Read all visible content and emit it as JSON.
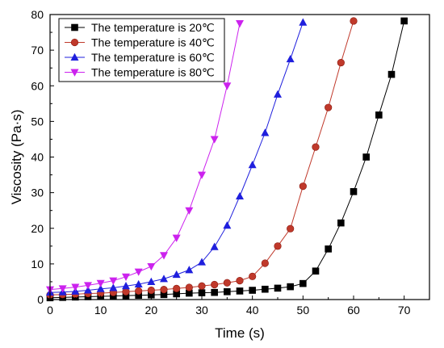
{
  "chart_data": {
    "type": "line",
    "xlabel": "Time (s)",
    "ylabel": "Viscosity (Pa·s)",
    "xlim": [
      0,
      75
    ],
    "ylim": [
      0,
      80
    ],
    "xticks": [
      "0",
      "10",
      "20",
      "30",
      "40",
      "50",
      "60",
      "70"
    ],
    "yticks": [
      "0",
      "10",
      "20",
      "30",
      "40",
      "50",
      "60",
      "70",
      "80"
    ],
    "grid": false,
    "legend_position": "top-left",
    "series": [
      {
        "name": "The temperature is 20℃",
        "color": "#000000",
        "marker": "square",
        "x": [
          0,
          2.5,
          5,
          7.5,
          10,
          12.5,
          15,
          17.5,
          20,
          22.5,
          25,
          27.5,
          30,
          32.5,
          35,
          37.5,
          40,
          42.5,
          45,
          47.5,
          50,
          52.5,
          55,
          57.5,
          60,
          62.5,
          65,
          67.5,
          70
        ],
        "y": [
          0.5,
          0.6,
          0.7,
          0.8,
          0.9,
          1.0,
          1.1,
          1.2,
          1.3,
          1.4,
          1.6,
          1.8,
          1.9,
          2.0,
          2.2,
          2.4,
          2.6,
          2.9,
          3.2,
          3.6,
          4.5,
          8.0,
          14.2,
          21.5,
          30.3,
          40.0,
          51.8,
          63.2,
          78.2
        ]
      },
      {
        "name": "The temperature is 40℃",
        "color": "#c0392b",
        "marker": "circle",
        "x": [
          0,
          2.5,
          5,
          7.5,
          10,
          12.5,
          15,
          17.5,
          20,
          22.5,
          25,
          27.5,
          30,
          32.5,
          35,
          37.5,
          40,
          42.5,
          45,
          47.5,
          50,
          52.5,
          55,
          57.5,
          60
        ],
        "y": [
          1.3,
          1.4,
          1.5,
          1.7,
          1.8,
          2.0,
          2.2,
          2.4,
          2.6,
          2.8,
          3.1,
          3.4,
          3.8,
          4.2,
          4.7,
          5.3,
          6.5,
          10.2,
          15.0,
          19.9,
          31.8,
          42.8,
          53.9,
          66.5,
          78.2
        ]
      },
      {
        "name": "The temperature is 60℃",
        "color": "#1f1fdd",
        "marker": "triangle-up",
        "x": [
          0,
          2.5,
          5,
          7.5,
          10,
          12.5,
          15,
          17.5,
          20,
          22.5,
          25,
          27.5,
          30,
          32.5,
          35,
          37.5,
          40,
          42.5,
          45,
          47.5,
          50
        ],
        "y": [
          2.0,
          2.1,
          2.3,
          2.6,
          3.0,
          3.3,
          3.8,
          4.3,
          5.0,
          5.8,
          7.0,
          8.3,
          10.5,
          14.8,
          20.8,
          29.0,
          37.8,
          46.8,
          57.6,
          67.5,
          77.8
        ]
      },
      {
        "name": "The temperature is 80℃",
        "color": "#cc22ee",
        "marker": "triangle-down",
        "x": [
          0,
          2.5,
          5,
          7.5,
          10,
          12.5,
          15,
          17.5,
          20,
          22.5,
          25,
          27.5,
          30,
          32.5,
          35,
          37.5
        ],
        "y": [
          2.8,
          3.1,
          3.5,
          4.0,
          4.6,
          5.3,
          6.4,
          7.8,
          9.3,
          12.4,
          17.3,
          25.0,
          35.0,
          45.0,
          60.0,
          77.5
        ]
      }
    ]
  }
}
